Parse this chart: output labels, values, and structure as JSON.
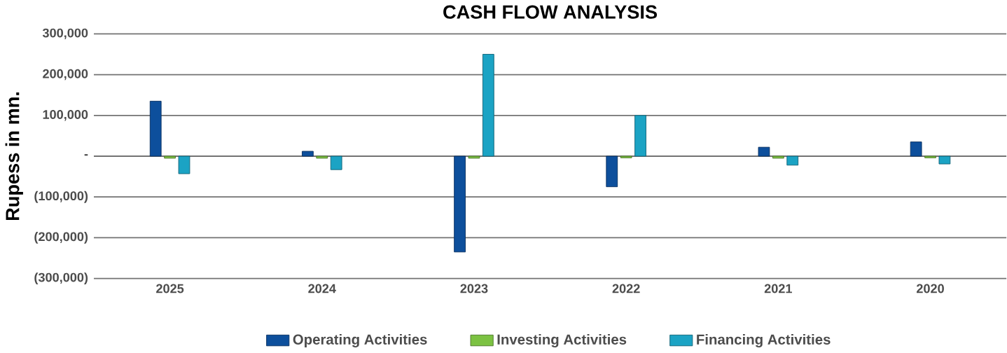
{
  "chart_data": {
    "type": "bar",
    "title": "CASH FLOW ANALYSIS",
    "ylabel": "Rupess in mn.",
    "categories": [
      "2025",
      "2024",
      "2023",
      "2022",
      "2021",
      "2020"
    ],
    "series": [
      {
        "name": "Operating Activities",
        "color": "#0d4f9c",
        "values": [
          135000,
          12000,
          -235000,
          -75000,
          22000,
          35000
        ]
      },
      {
        "name": "Investing Activities",
        "color": "#7cc242",
        "values": [
          -5000,
          -5000,
          -5000,
          -4000,
          -5000,
          -4000
        ]
      },
      {
        "name": "Financing Activities",
        "color": "#1ba3c4",
        "values": [
          -43000,
          -33000,
          250000,
          100000,
          -22000,
          -19000
        ]
      }
    ],
    "ylim": [
      -300000,
      300000
    ],
    "yticks": [
      {
        "value": -300000,
        "label": "(300,000)"
      },
      {
        "value": -200000,
        "label": "(200,000)"
      },
      {
        "value": -100000,
        "label": "(100,000)"
      },
      {
        "value": 0,
        "label": "-"
      },
      {
        "value": 100000,
        "label": "100,000"
      },
      {
        "value": 200000,
        "label": "200,000"
      },
      {
        "value": 300000,
        "label": "300,000"
      }
    ],
    "grid": "y",
    "legend": "bottom"
  }
}
